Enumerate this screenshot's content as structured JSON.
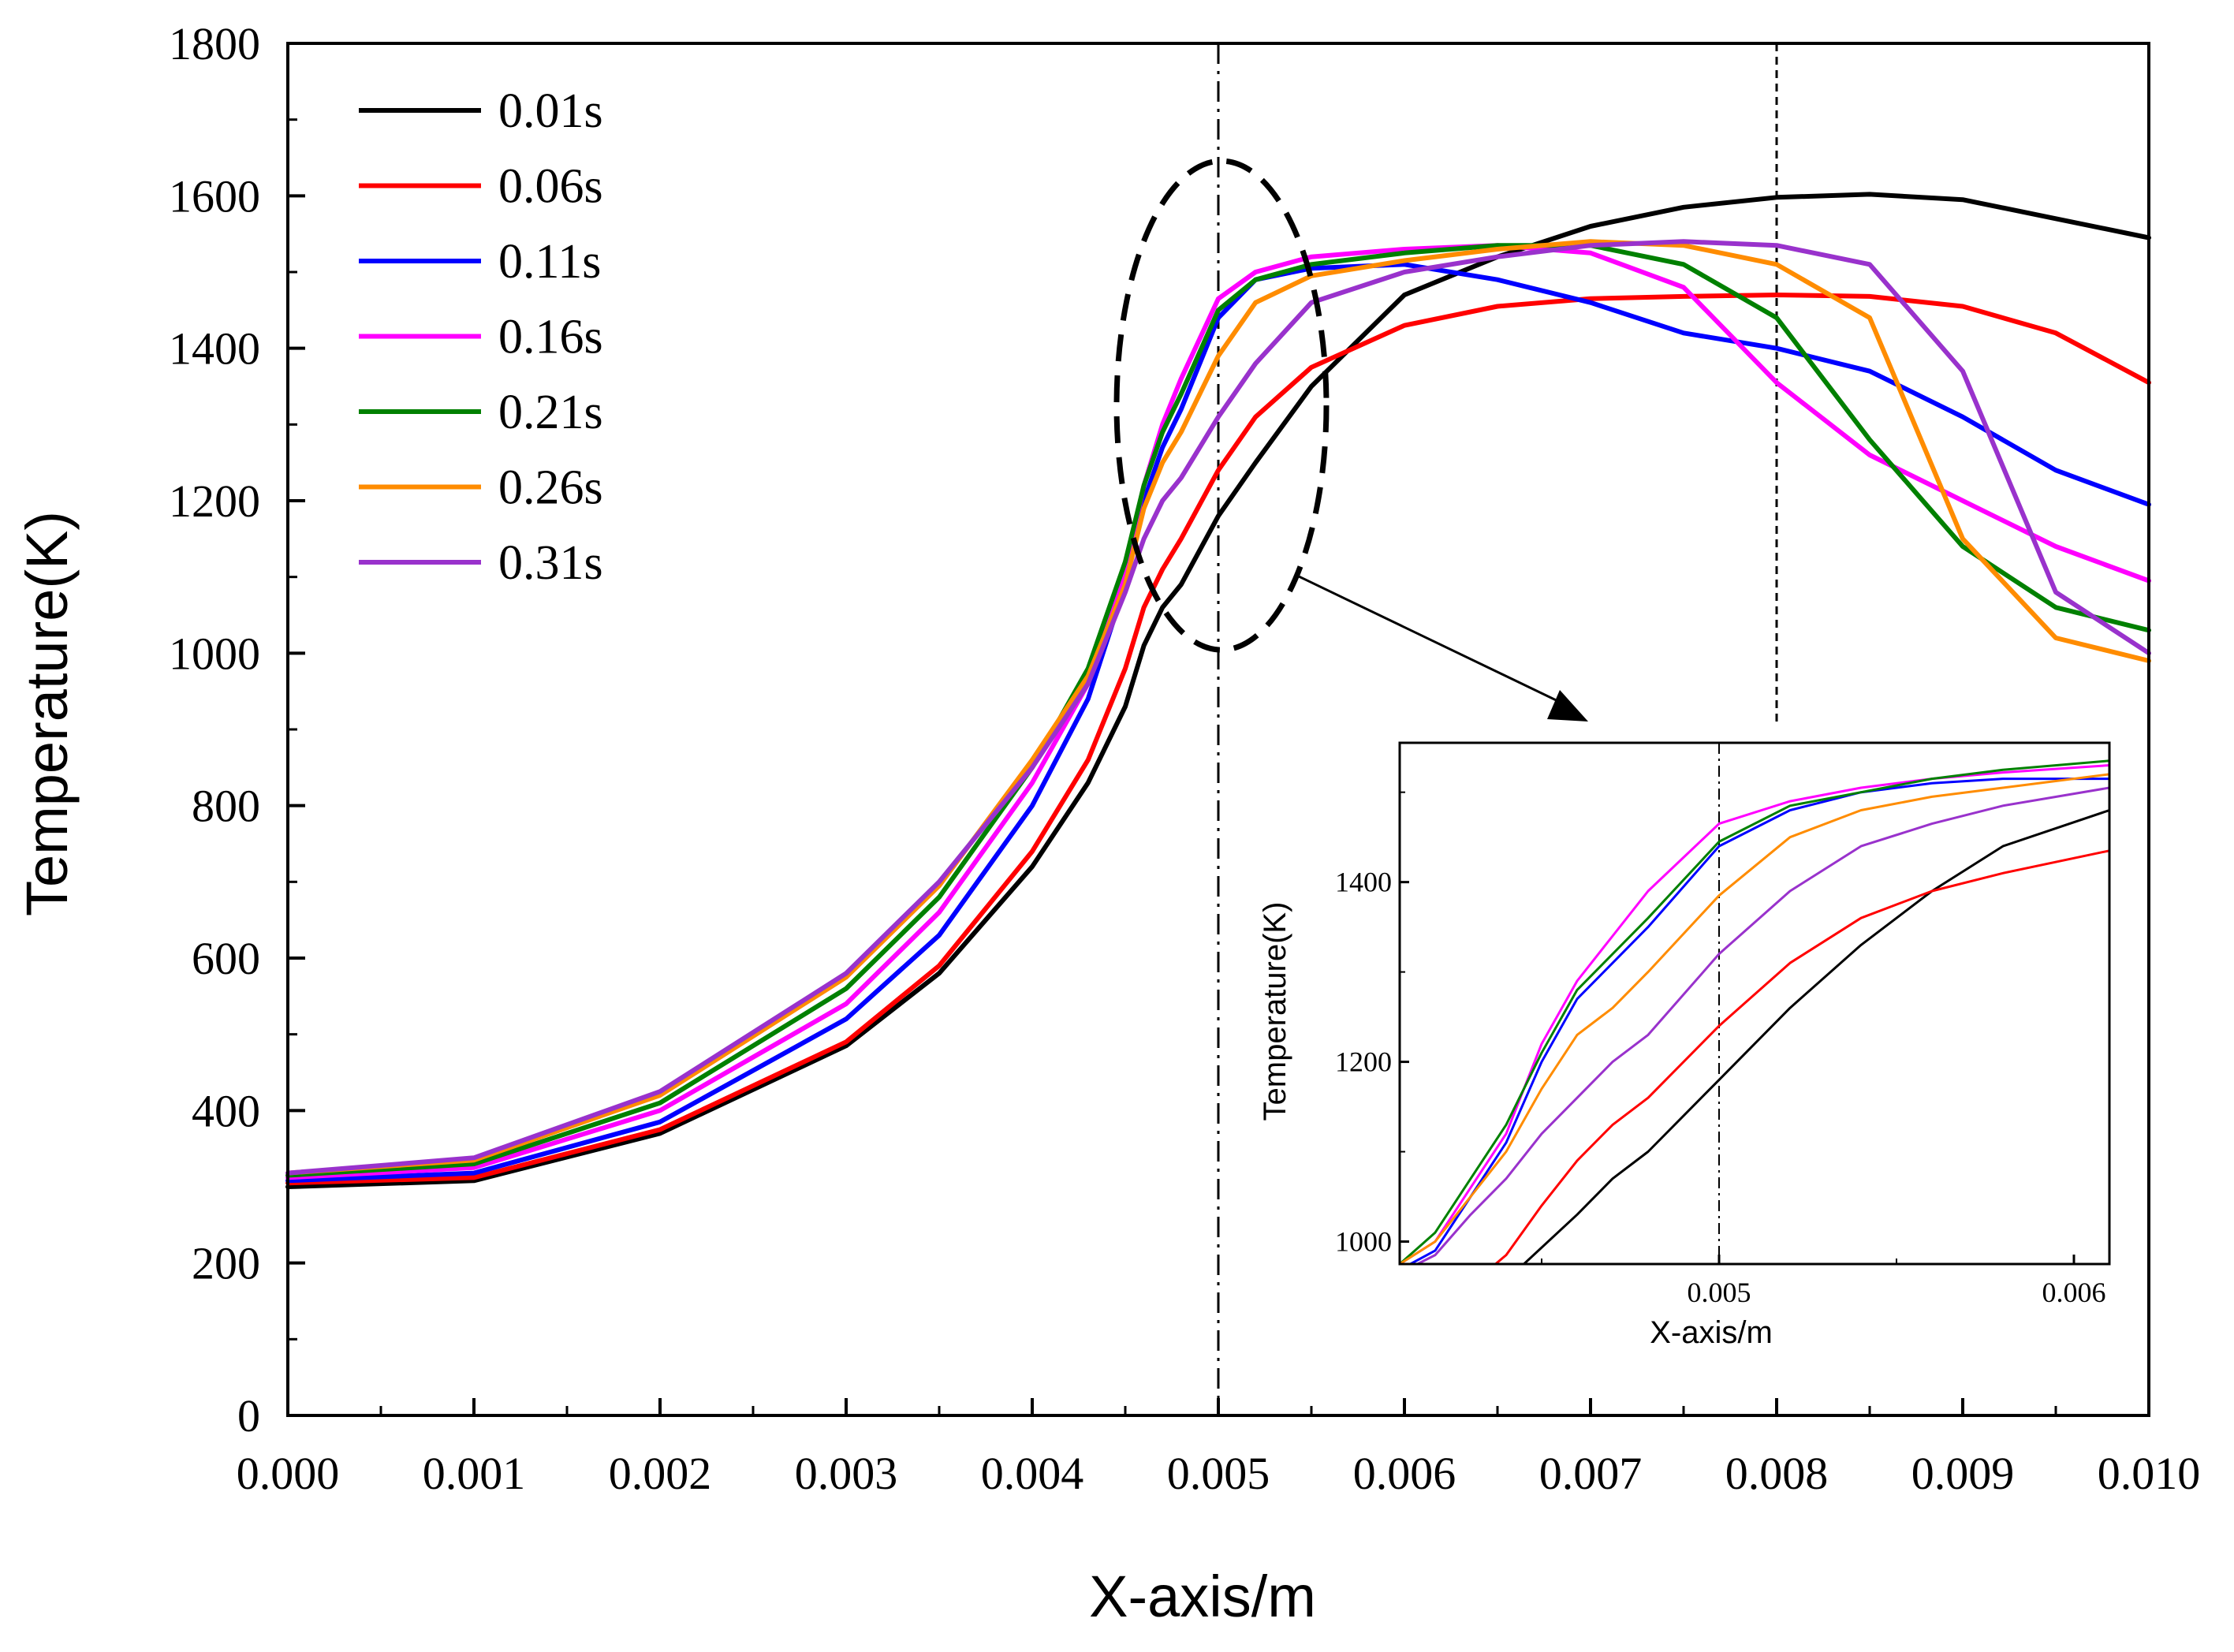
{
  "chart_data": [
    {
      "type": "line",
      "xlabel": "X-axis/m",
      "ylabel": "Temperature(K)",
      "xlim": [
        0,
        0.01
      ],
      "ylim": [
        0,
        1800
      ],
      "xticks": [
        "0.000",
        "0.001",
        "0.002",
        "0.003",
        "0.004",
        "0.005",
        "0.006",
        "0.007",
        "0.008",
        "0.009",
        "0.010"
      ],
      "yticks": [
        "0",
        "200",
        "400",
        "600",
        "800",
        "1000",
        "1200",
        "1400",
        "1600",
        "1800"
      ],
      "grid": false,
      "legend_position": "top-left",
      "reference_lines": [
        {
          "x": 0.005,
          "style": "dash-dot"
        },
        {
          "x": 0.008,
          "style": "dotted"
        }
      ],
      "annotation": {
        "shape": "dashed-ellipse",
        "center": [
          0.005,
          1325
        ],
        "note": "zoom region shown in inset"
      },
      "series": [
        {
          "name": "0.01s",
          "color": "#000000",
          "x": [
            0,
            0.001,
            0.002,
            0.003,
            0.0035,
            0.004,
            0.0043,
            0.0045,
            0.0046,
            0.0047,
            0.0048,
            0.005,
            0.0052,
            0.0055,
            0.006,
            0.0065,
            0.007,
            0.0075,
            0.008,
            0.0085,
            0.009,
            0.0095,
            0.01
          ],
          "y": [
            300,
            308,
            370,
            485,
            580,
            720,
            830,
            930,
            1010,
            1060,
            1090,
            1180,
            1250,
            1350,
            1470,
            1520,
            1560,
            1585,
            1598,
            1602,
            1595,
            1570,
            1545
          ]
        },
        {
          "name": "0.06s",
          "color": "#ff0000",
          "x": [
            0,
            0.001,
            0.002,
            0.003,
            0.0035,
            0.004,
            0.0043,
            0.0045,
            0.0046,
            0.0047,
            0.0048,
            0.005,
            0.0052,
            0.0055,
            0.006,
            0.0065,
            0.007,
            0.0075,
            0.008,
            0.0085,
            0.009,
            0.0095,
            0.01
          ],
          "y": [
            305,
            312,
            375,
            490,
            590,
            740,
            860,
            980,
            1060,
            1110,
            1150,
            1240,
            1310,
            1375,
            1430,
            1455,
            1465,
            1468,
            1470,
            1468,
            1455,
            1420,
            1355
          ]
        },
        {
          "name": "0.11s",
          "color": "#0000ff",
          "x": [
            0,
            0.001,
            0.002,
            0.003,
            0.0035,
            0.004,
            0.0043,
            0.0045,
            0.0046,
            0.0047,
            0.0048,
            0.005,
            0.0052,
            0.0055,
            0.006,
            0.0065,
            0.007,
            0.0075,
            0.008,
            0.0085,
            0.009,
            0.0095,
            0.01
          ],
          "y": [
            308,
            318,
            385,
            520,
            630,
            800,
            940,
            1090,
            1200,
            1270,
            1320,
            1440,
            1490,
            1505,
            1510,
            1490,
            1460,
            1420,
            1400,
            1370,
            1310,
            1240,
            1195
          ]
        },
        {
          "name": "0.16s",
          "color": "#ff00ff",
          "x": [
            0,
            0.001,
            0.002,
            0.003,
            0.0035,
            0.004,
            0.0043,
            0.0045,
            0.0046,
            0.0047,
            0.0048,
            0.005,
            0.0052,
            0.0055,
            0.006,
            0.0065,
            0.007,
            0.0075,
            0.008,
            0.0085,
            0.009,
            0.0095,
            0.01
          ],
          "y": [
            312,
            325,
            400,
            540,
            660,
            830,
            960,
            1110,
            1220,
            1300,
            1360,
            1465,
            1500,
            1520,
            1530,
            1535,
            1525,
            1480,
            1355,
            1260,
            1200,
            1140,
            1095
          ]
        },
        {
          "name": "0.21s",
          "color": "#008000",
          "x": [
            0,
            0.001,
            0.002,
            0.003,
            0.0035,
            0.004,
            0.0043,
            0.0045,
            0.0046,
            0.0047,
            0.0048,
            0.005,
            0.0052,
            0.0055,
            0.006,
            0.0065,
            0.007,
            0.0075,
            0.008,
            0.0085,
            0.009,
            0.0095,
            0.01
          ],
          "y": [
            315,
            330,
            410,
            560,
            680,
            850,
            980,
            1120,
            1220,
            1290,
            1340,
            1450,
            1490,
            1510,
            1525,
            1535,
            1535,
            1510,
            1440,
            1280,
            1140,
            1060,
            1030
          ]
        },
        {
          "name": "0.26s",
          "color": "#ff8c00",
          "x": [
            0,
            0.001,
            0.002,
            0.003,
            0.0035,
            0.004,
            0.0043,
            0.0045,
            0.0046,
            0.0047,
            0.0048,
            0.005,
            0.0052,
            0.0055,
            0.006,
            0.0065,
            0.007,
            0.0075,
            0.008,
            0.0085,
            0.009,
            0.0095,
            0.01
          ],
          "y": [
            318,
            335,
            420,
            575,
            695,
            860,
            970,
            1090,
            1190,
            1250,
            1290,
            1390,
            1460,
            1495,
            1515,
            1530,
            1540,
            1535,
            1510,
            1440,
            1150,
            1020,
            990
          ]
        },
        {
          "name": "0.31s",
          "color": "#9932cc",
          "x": [
            0,
            0.001,
            0.002,
            0.003,
            0.0035,
            0.004,
            0.0043,
            0.0045,
            0.0046,
            0.0047,
            0.0048,
            0.005,
            0.0052,
            0.0055,
            0.006,
            0.0065,
            0.007,
            0.0075,
            0.008,
            0.0085,
            0.009,
            0.0095,
            0.01
          ],
          "y": [
            318,
            338,
            425,
            580,
            700,
            850,
            960,
            1080,
            1150,
            1200,
            1230,
            1310,
            1380,
            1460,
            1500,
            1520,
            1535,
            1540,
            1535,
            1510,
            1370,
            1080,
            1000
          ]
        }
      ]
    },
    {
      "type": "line",
      "role": "inset",
      "xlabel": "X-axis/m",
      "ylabel": "Temperature(K)",
      "xlim": [
        0.0041,
        0.0061
      ],
      "ylim": [
        975,
        1555
      ],
      "xticks": [
        "0.005",
        "0.006"
      ],
      "yticks": [
        "1000",
        "1200",
        "1400"
      ],
      "reference_lines": [
        {
          "x": 0.005,
          "style": "dash-dot"
        }
      ],
      "series": [
        {
          "name": "0.01s",
          "color": "#000000",
          "x": [
            0.00445,
            0.0046,
            0.0047,
            0.0048,
            0.005,
            0.0052,
            0.0054,
            0.0056,
            0.0058,
            0.0061
          ],
          "y": [
            975,
            1030,
            1070,
            1100,
            1180,
            1260,
            1330,
            1390,
            1440,
            1480
          ]
        },
        {
          "name": "0.06s",
          "color": "#ff0000",
          "x": [
            0.00437,
            0.0044,
            0.0045,
            0.0046,
            0.0047,
            0.0048,
            0.005,
            0.0052,
            0.0054,
            0.0056,
            0.0058,
            0.0061
          ],
          "y": [
            975,
            985,
            1040,
            1090,
            1130,
            1160,
            1240,
            1310,
            1360,
            1390,
            1410,
            1435
          ]
        },
        {
          "name": "0.11s",
          "color": "#0000ff",
          "x": [
            0.00413,
            0.0042,
            0.0043,
            0.0044,
            0.0045,
            0.0046,
            0.0047,
            0.0048,
            0.005,
            0.0052,
            0.0054,
            0.0056,
            0.0058,
            0.0061
          ],
          "y": [
            975,
            990,
            1050,
            1110,
            1200,
            1270,
            1310,
            1350,
            1440,
            1480,
            1500,
            1510,
            1515,
            1515
          ]
        },
        {
          "name": "0.16s",
          "color": "#ff00ff",
          "x": [
            0.0041,
            0.0042,
            0.0043,
            0.0044,
            0.0045,
            0.0046,
            0.0047,
            0.0048,
            0.005,
            0.0052,
            0.0054,
            0.0056,
            0.0058,
            0.0061
          ],
          "y": [
            975,
            1000,
            1060,
            1120,
            1220,
            1290,
            1340,
            1390,
            1465,
            1490,
            1505,
            1515,
            1522,
            1530
          ]
        },
        {
          "name": "0.21s",
          "color": "#008000",
          "x": [
            0.0041,
            0.0042,
            0.0043,
            0.0044,
            0.0045,
            0.0046,
            0.0047,
            0.0048,
            0.005,
            0.0052,
            0.0054,
            0.0056,
            0.0058,
            0.0061
          ],
          "y": [
            975,
            1010,
            1070,
            1130,
            1210,
            1280,
            1320,
            1360,
            1445,
            1485,
            1500,
            1515,
            1525,
            1535
          ]
        },
        {
          "name": "0.26s",
          "color": "#ff8c00",
          "x": [
            0.0041,
            0.0042,
            0.0043,
            0.0044,
            0.0045,
            0.0046,
            0.0047,
            0.0048,
            0.005,
            0.0052,
            0.0054,
            0.0056,
            0.0058,
            0.0061
          ],
          "y": [
            975,
            1000,
            1050,
            1100,
            1170,
            1230,
            1260,
            1300,
            1385,
            1450,
            1480,
            1495,
            1505,
            1520
          ]
        },
        {
          "name": "0.31s",
          "color": "#9932cc",
          "x": [
            0.00415,
            0.0042,
            0.0043,
            0.0044,
            0.0045,
            0.0046,
            0.0047,
            0.0048,
            0.005,
            0.0052,
            0.0054,
            0.0056,
            0.0058,
            0.0061
          ],
          "y": [
            975,
            985,
            1030,
            1070,
            1120,
            1160,
            1200,
            1230,
            1320,
            1390,
            1440,
            1465,
            1485,
            1505
          ]
        }
      ]
    }
  ]
}
